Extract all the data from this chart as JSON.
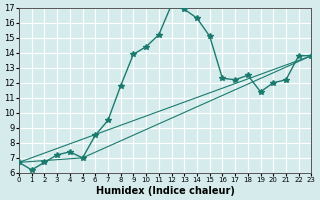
{
  "xlabel": "Humidex (Indice chaleur)",
  "background_color": "#d6ecec",
  "grid_color": "#ffffff",
  "line_color": "#1a7a6e",
  "xlim": [
    0,
    23
  ],
  "ylim": [
    6,
    17
  ],
  "xticks": [
    0,
    1,
    2,
    3,
    4,
    5,
    6,
    7,
    8,
    9,
    10,
    11,
    12,
    13,
    14,
    15,
    16,
    17,
    18,
    19,
    20,
    21,
    22,
    23
  ],
  "yticks": [
    6,
    7,
    8,
    9,
    10,
    11,
    12,
    13,
    14,
    15,
    16,
    17
  ],
  "line1_x": [
    0,
    1,
    2,
    3,
    4,
    5,
    6,
    7,
    8,
    9,
    10,
    11,
    12,
    13,
    14,
    15,
    16,
    17,
    18,
    19,
    20,
    21,
    22,
    23
  ],
  "line1_y": [
    6.7,
    6.2,
    6.7,
    7.2,
    7.4,
    7.0,
    8.5,
    9.5,
    11.8,
    13.9,
    14.4,
    15.2,
    17.2,
    16.9,
    16.3,
    15.1,
    12.3,
    12.2,
    12.5,
    11.4,
    12.0,
    12.2,
    13.8,
    13.8
  ],
  "line2_x": [
    0,
    23
  ],
  "line2_y": [
    6.7,
    13.8
  ],
  "line3_x": [
    0,
    5,
    23
  ],
  "line3_y": [
    6.7,
    7.0,
    13.8
  ]
}
